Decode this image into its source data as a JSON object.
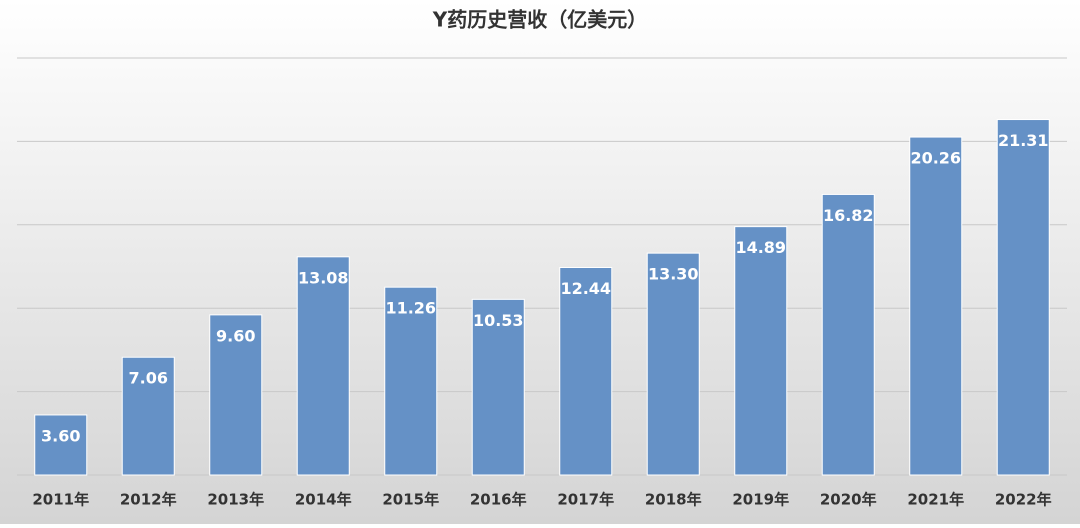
{
  "chart_data": {
    "type": "bar",
    "title": "Y药历史营收（亿美元）",
    "categories": [
      "2011年",
      "2012年",
      "2013年",
      "2014年",
      "2015年",
      "2016年",
      "2017年",
      "2018年",
      "2019年",
      "2020年",
      "2021年",
      "2022年"
    ],
    "values": [
      3.6,
      7.06,
      9.6,
      13.08,
      11.26,
      10.53,
      12.44,
      13.3,
      14.89,
      16.82,
      20.26,
      21.31
    ],
    "value_labels": [
      "3.60",
      "7.06",
      "9.60",
      "13.08",
      "11.26",
      "10.53",
      "12.44",
      "13.30",
      "14.89",
      "16.82",
      "20.26",
      "21.31"
    ],
    "color": "#6591c6",
    "ylim": [
      0,
      25
    ],
    "yticks": [
      0,
      5,
      10,
      15,
      20,
      25
    ],
    "grid": true
  }
}
